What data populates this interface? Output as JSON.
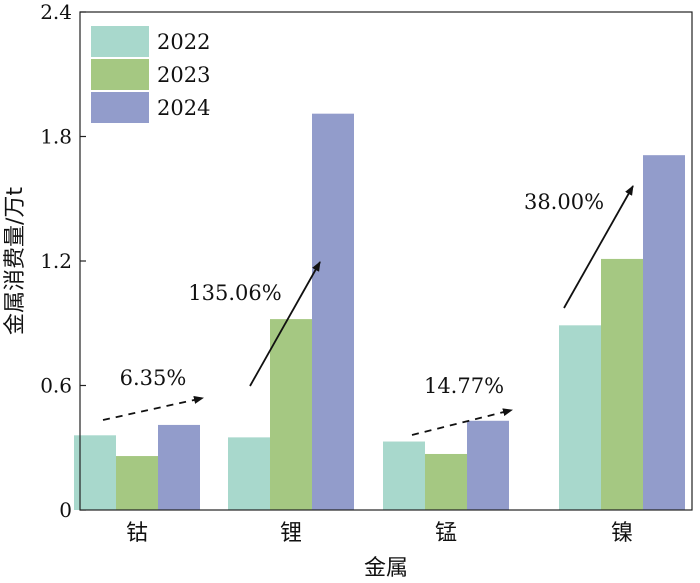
{
  "chart_data": {
    "type": "bar",
    "categories": [
      "钴",
      "锂",
      "锰",
      "镍"
    ],
    "series": [
      {
        "name": "2022",
        "color": "#a8d8cc",
        "values": [
          0.36,
          0.35,
          0.33,
          0.89
        ]
      },
      {
        "name": "2023",
        "color": "#a5c882",
        "values": [
          0.26,
          0.92,
          0.27,
          1.21
        ]
      },
      {
        "name": "2024",
        "color": "#929ccb",
        "values": [
          0.41,
          1.91,
          0.43,
          1.71
        ]
      }
    ],
    "xlabel": "金属",
    "ylabel": "金属消费量/万t",
    "ylim": [
      0,
      2.4
    ],
    "yticks": [
      0,
      0.6,
      1.2,
      1.8,
      2.4
    ],
    "ytick_labels": [
      "0",
      "0.6",
      "1.2",
      "1.8",
      "2.4"
    ],
    "legend": {
      "placement": "top-left",
      "entries": [
        "2022",
        "2023",
        "2024"
      ]
    },
    "annotations": [
      {
        "category": "钴",
        "text": "6.35%",
        "style": "dashed"
      },
      {
        "category": "锂",
        "text": "135.06%",
        "style": "solid"
      },
      {
        "category": "锰",
        "text": "14.77%",
        "style": "dashed"
      },
      {
        "category": "镍",
        "text": "38.00%",
        "style": "solid"
      }
    ]
  }
}
